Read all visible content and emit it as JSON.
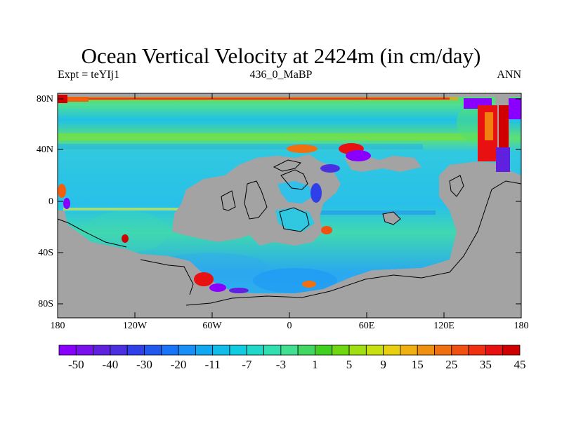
{
  "title": "Ocean Vertical Velocity at 2424m (in cm/day)",
  "subtitle_left": "Expt = teYIj1",
  "subtitle_center": "436_0_MaBP",
  "subtitle_right": "ANN",
  "lat_labels": [
    "80N",
    "40N",
    "0",
    "40S",
    "80S"
  ],
  "lon_labels": [
    "180",
    "120W",
    "60W",
    "0",
    "60E",
    "120E",
    "180"
  ],
  "colorbar_labels": [
    "-50",
    "-40",
    "-30",
    "-20",
    "-11",
    "-7",
    "-3",
    "1",
    "5",
    "9",
    "15",
    "25",
    "35",
    "45"
  ],
  "colorbar_colors": [
    "#8a00ff",
    "#7a10f0",
    "#6020e0",
    "#4a30e0",
    "#3040e8",
    "#2058f0",
    "#1874f8",
    "#1890f8",
    "#10a8f0",
    "#10bce8",
    "#10cce0",
    "#20d8c8",
    "#30e0b0",
    "#40e090",
    "#40d860",
    "#40d020",
    "#70d810",
    "#a0e010",
    "#c8e010",
    "#e8d010",
    "#f0b010",
    "#f09010",
    "#f07010",
    "#f05010",
    "#f03010",
    "#e81010",
    "#d00000"
  ],
  "land_color": "#a3a3a3"
}
